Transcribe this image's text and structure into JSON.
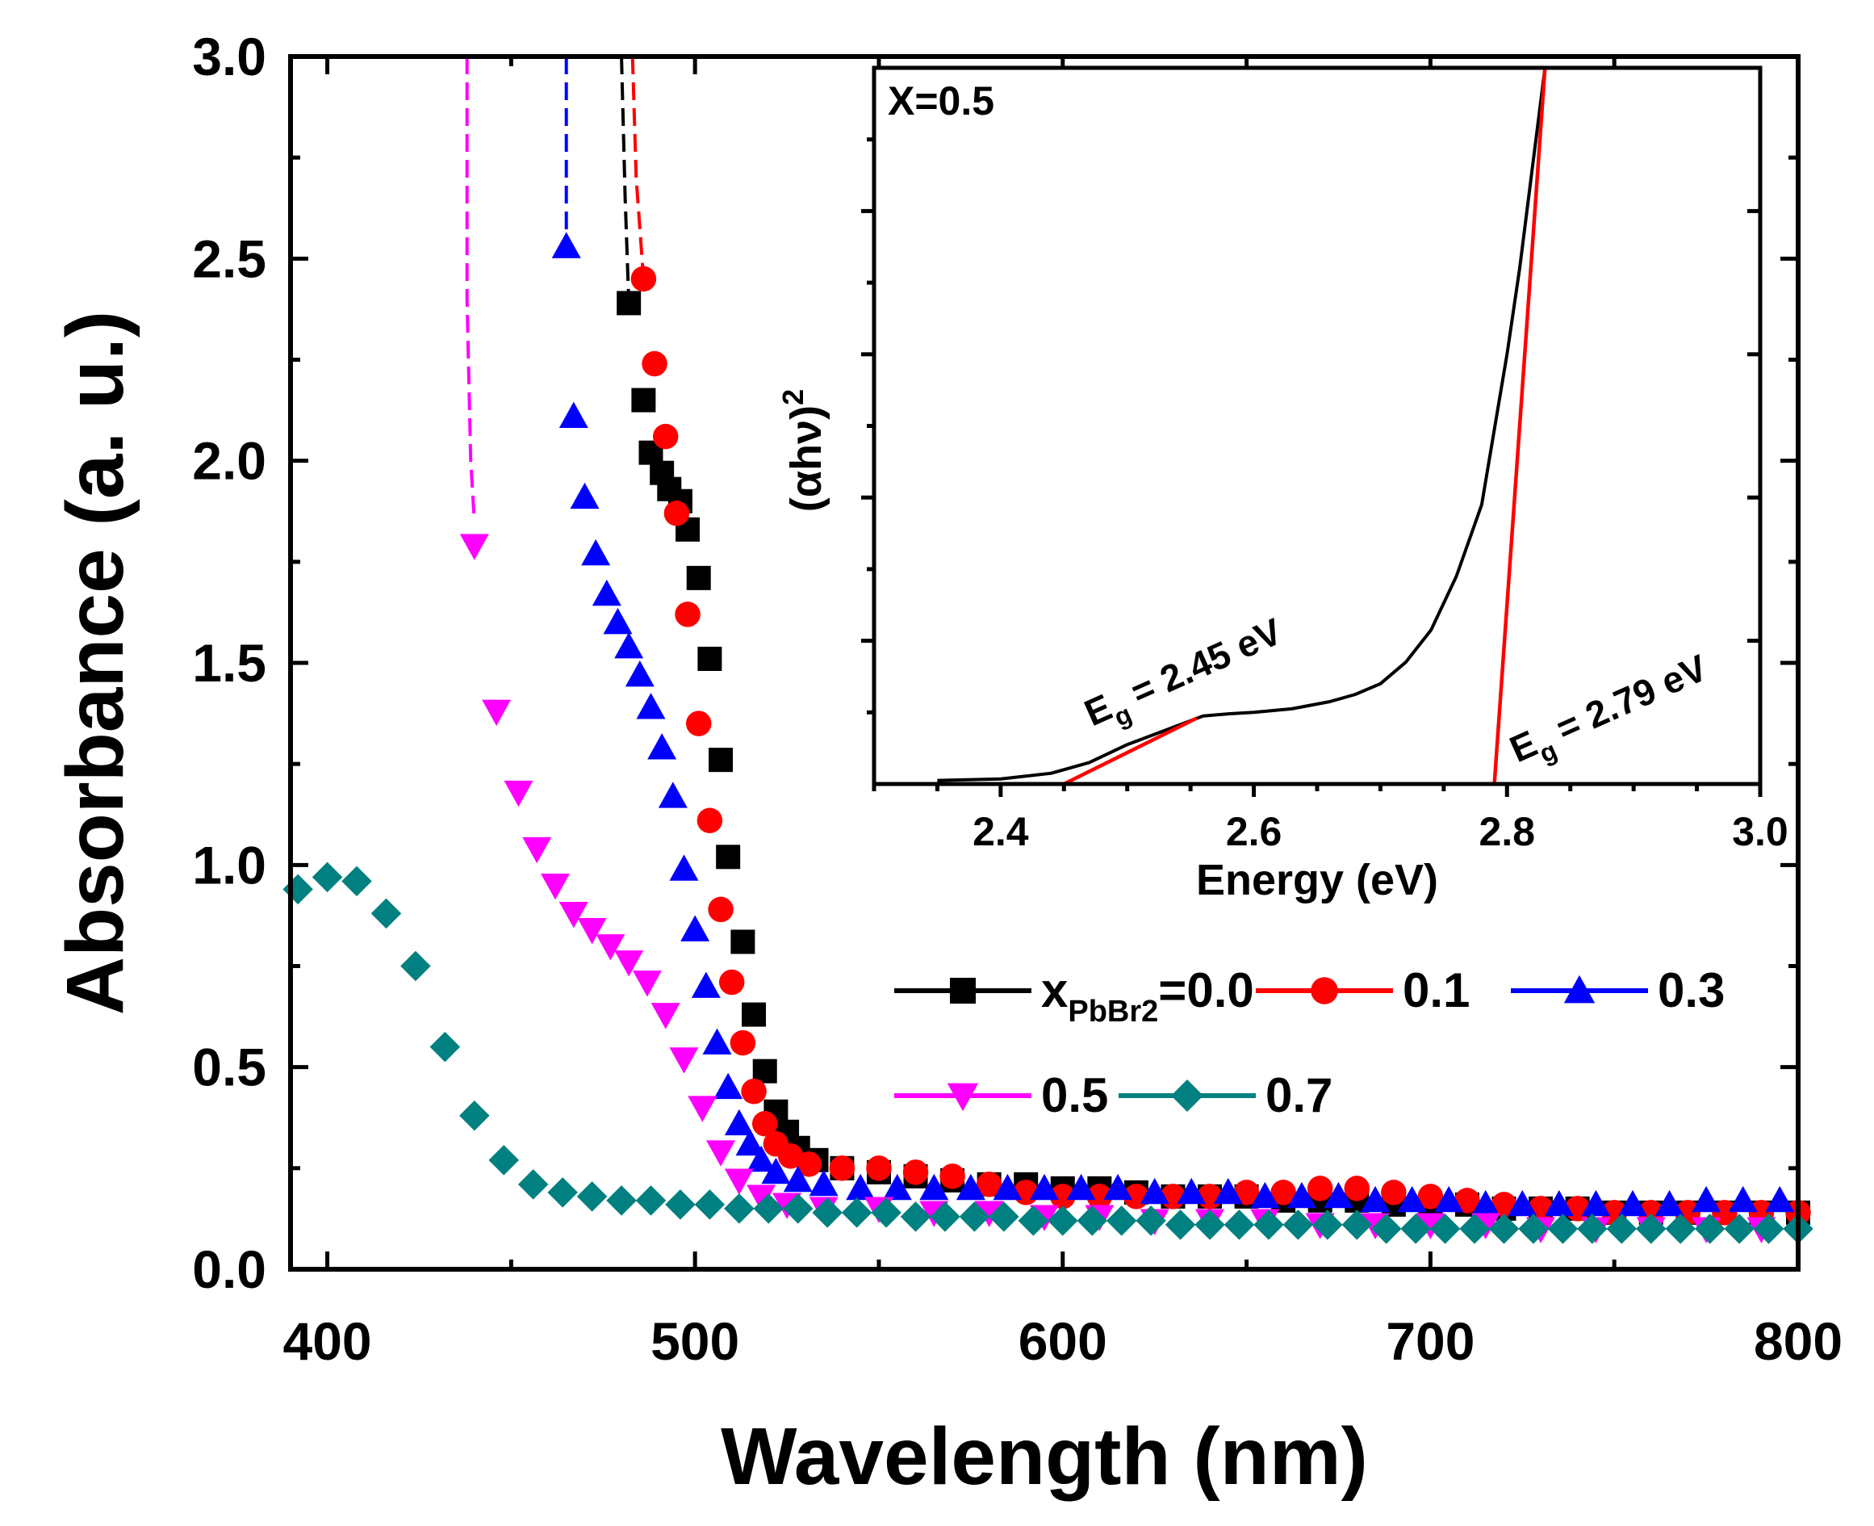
{
  "chart_data": [
    {
      "type": "scatter",
      "xlabel": "Wavelength (nm)",
      "ylabel": "Absorbance (a. u.)",
      "xlim": [
        390,
        800
      ],
      "ylim": [
        0,
        3.0
      ],
      "xticks": [
        400,
        500,
        600,
        700,
        800
      ],
      "xtick_labels": [
        "400",
        "500",
        "600",
        "700",
        "800"
      ],
      "yticks": [
        0,
        0.5,
        1.0,
        1.5,
        2.0,
        2.5,
        3.0
      ],
      "ytick_labels": [
        "0.0",
        "0.5",
        "1.0",
        "1.5",
        "2.0",
        "2.5",
        "3.0"
      ],
      "legend": {
        "placement": "right-middle",
        "prefix_main": "x",
        "prefix_sub": "PbBr2",
        "first_suffix": "=0.0"
      },
      "series": [
        {
          "name": "0.0",
          "label": "=0.0",
          "color": "#000000",
          "marker": "square",
          "points": [
            [
              482,
              2.39
            ],
            [
              486,
              2.15
            ],
            [
              488,
              2.02
            ],
            [
              491,
              1.97
            ],
            [
              493,
              1.93
            ],
            [
              496,
              1.9
            ],
            [
              498,
              1.83
            ],
            [
              501,
              1.71
            ],
            [
              504,
              1.51
            ],
            [
              507,
              1.26
            ],
            [
              509,
              1.02
            ],
            [
              513,
              0.81
            ],
            [
              516,
              0.63
            ],
            [
              519,
              0.49
            ],
            [
              522,
              0.39
            ],
            [
              525,
              0.34
            ],
            [
              528,
              0.3
            ],
            [
              533,
              0.27
            ],
            [
              540,
              0.25
            ],
            [
              550,
              0.24
            ],
            [
              560,
              0.23
            ],
            [
              570,
              0.22
            ],
            [
              580,
              0.21
            ],
            [
              590,
              0.21
            ],
            [
              600,
              0.2
            ],
            [
              610,
              0.2
            ],
            [
              620,
              0.19
            ],
            [
              630,
              0.18
            ],
            [
              640,
              0.18
            ],
            [
              650,
              0.18
            ],
            [
              660,
              0.17
            ],
            [
              670,
              0.17
            ],
            [
              680,
              0.17
            ],
            [
              690,
              0.16
            ],
            [
              700,
              0.16
            ],
            [
              710,
              0.16
            ],
            [
              720,
              0.15
            ],
            [
              730,
              0.15
            ],
            [
              740,
              0.15
            ],
            [
              750,
              0.14
            ],
            [
              760,
              0.14
            ],
            [
              770,
              0.14
            ],
            [
              780,
              0.14
            ],
            [
              790,
              0.14
            ],
            [
              800,
              0.14
            ]
          ],
          "curve": [
            [
              480,
              3.0
            ],
            [
              481,
              2.65
            ],
            [
              482,
              2.39
            ]
          ]
        },
        {
          "name": "0.1",
          "label": "0.1",
          "color": "#ff0000",
          "marker": "circle",
          "points": [
            [
              486,
              2.45
            ],
            [
              489,
              2.24
            ],
            [
              492,
              2.06
            ],
            [
              495,
              1.87
            ],
            [
              498,
              1.62
            ],
            [
              501,
              1.35
            ],
            [
              504,
              1.11
            ],
            [
              507,
              0.89
            ],
            [
              510,
              0.71
            ],
            [
              513,
              0.56
            ],
            [
              516,
              0.44
            ],
            [
              519,
              0.36
            ],
            [
              522,
              0.31
            ],
            [
              526,
              0.28
            ],
            [
              531,
              0.26
            ],
            [
              540,
              0.25
            ],
            [
              550,
              0.25
            ],
            [
              560,
              0.24
            ],
            [
              570,
              0.23
            ],
            [
              580,
              0.21
            ],
            [
              590,
              0.19
            ],
            [
              600,
              0.18
            ],
            [
              610,
              0.18
            ],
            [
              620,
              0.18
            ],
            [
              630,
              0.18
            ],
            [
              640,
              0.18
            ],
            [
              650,
              0.19
            ],
            [
              660,
              0.19
            ],
            [
              670,
              0.2
            ],
            [
              680,
              0.2
            ],
            [
              690,
              0.19
            ],
            [
              700,
              0.18
            ],
            [
              710,
              0.17
            ],
            [
              720,
              0.16
            ],
            [
              730,
              0.15
            ],
            [
              740,
              0.15
            ],
            [
              750,
              0.14
            ],
            [
              760,
              0.14
            ],
            [
              770,
              0.14
            ],
            [
              780,
              0.14
            ],
            [
              790,
              0.14
            ],
            [
              800,
              0.14
            ]
          ],
          "curve": [
            [
              483,
              3.0
            ],
            [
              484,
              2.7
            ],
            [
              486,
              2.45
            ]
          ]
        },
        {
          "name": "0.3",
          "label": "0.3",
          "color": "#0000ff",
          "marker": "triangle-up",
          "points": [
            [
              465,
              2.53
            ],
            [
              467,
              2.11
            ],
            [
              470,
              1.91
            ],
            [
              473,
              1.77
            ],
            [
              476,
              1.67
            ],
            [
              479,
              1.6
            ],
            [
              482,
              1.54
            ],
            [
              485,
              1.47
            ],
            [
              488,
              1.39
            ],
            [
              491,
              1.29
            ],
            [
              494,
              1.17
            ],
            [
              497,
              0.99
            ],
            [
              500,
              0.84
            ],
            [
              503,
              0.7
            ],
            [
              506,
              0.56
            ],
            [
              509,
              0.45
            ],
            [
              512,
              0.36
            ],
            [
              515,
              0.31
            ],
            [
              518,
              0.27
            ],
            [
              522,
              0.24
            ],
            [
              528,
              0.22
            ],
            [
              535,
              0.21
            ],
            [
              545,
              0.2
            ],
            [
              555,
              0.2
            ],
            [
              565,
              0.2
            ],
            [
              575,
              0.2
            ],
            [
              585,
              0.2
            ],
            [
              595,
              0.2
            ],
            [
              605,
              0.2
            ],
            [
              615,
              0.2
            ],
            [
              625,
              0.19
            ],
            [
              635,
              0.19
            ],
            [
              645,
              0.19
            ],
            [
              655,
              0.18
            ],
            [
              665,
              0.18
            ],
            [
              675,
              0.18
            ],
            [
              685,
              0.17
            ],
            [
              695,
              0.17
            ],
            [
              705,
              0.17
            ],
            [
              715,
              0.16
            ],
            [
              725,
              0.16
            ],
            [
              735,
              0.16
            ],
            [
              745,
              0.16
            ],
            [
              755,
              0.16
            ],
            [
              765,
              0.16
            ],
            [
              775,
              0.17
            ],
            [
              785,
              0.17
            ],
            [
              795,
              0.17
            ]
          ],
          "curve": [
            [
              465,
              3.0
            ],
            [
              465,
              2.75
            ],
            [
              465,
              2.53
            ]
          ]
        },
        {
          "name": "0.5",
          "label": "0.5",
          "color": "#ff00ff",
          "marker": "triangle-down",
          "points": [
            [
              440,
              1.79
            ],
            [
              446,
              1.38
            ],
            [
              452,
              1.18
            ],
            [
              457,
              1.04
            ],
            [
              462,
              0.95
            ],
            [
              467,
              0.88
            ],
            [
              472,
              0.84
            ],
            [
              477,
              0.8
            ],
            [
              482,
              0.76
            ],
            [
              487,
              0.71
            ],
            [
              492,
              0.63
            ],
            [
              497,
              0.52
            ],
            [
              502,
              0.4
            ],
            [
              507,
              0.29
            ],
            [
              512,
              0.22
            ],
            [
              518,
              0.18
            ],
            [
              525,
              0.16
            ],
            [
              535,
              0.15
            ],
            [
              550,
              0.15
            ],
            [
              565,
              0.14
            ],
            [
              580,
              0.14
            ],
            [
              595,
              0.13
            ],
            [
              610,
              0.13
            ],
            [
              625,
              0.12
            ],
            [
              640,
              0.12
            ],
            [
              655,
              0.12
            ],
            [
              670,
              0.11
            ],
            [
              685,
              0.11
            ],
            [
              700,
              0.11
            ],
            [
              715,
              0.11
            ],
            [
              730,
              0.1
            ],
            [
              745,
              0.1
            ],
            [
              760,
              0.1
            ],
            [
              775,
              0.1
            ],
            [
              790,
              0.1
            ]
          ],
          "curve": [
            [
              438,
              3.0
            ],
            [
              438,
              2.4
            ],
            [
              439,
              2.0
            ],
            [
              440,
              1.85
            ]
          ]
        },
        {
          "name": "0.7",
          "label": "0.7",
          "color": "#008080",
          "marker": "diamond",
          "points": [
            [
              392,
              0.94
            ],
            [
              400,
              0.97
            ],
            [
              408,
              0.96
            ],
            [
              416,
              0.88
            ],
            [
              424,
              0.75
            ],
            [
              432,
              0.55
            ],
            [
              440,
              0.38
            ],
            [
              448,
              0.27
            ],
            [
              456,
              0.21
            ],
            [
              464,
              0.19
            ],
            [
              472,
              0.18
            ],
            [
              480,
              0.17
            ],
            [
              488,
              0.17
            ],
            [
              496,
              0.16
            ],
            [
              504,
              0.16
            ],
            [
              512,
              0.15
            ],
            [
              520,
              0.15
            ],
            [
              528,
              0.15
            ],
            [
              536,
              0.14
            ],
            [
              544,
              0.14
            ],
            [
              552,
              0.14
            ],
            [
              560,
              0.13
            ],
            [
              568,
              0.13
            ],
            [
              576,
              0.13
            ],
            [
              584,
              0.13
            ],
            [
              592,
              0.12
            ],
            [
              600,
              0.12
            ],
            [
              608,
              0.12
            ],
            [
              616,
              0.12
            ],
            [
              624,
              0.12
            ],
            [
              632,
              0.11
            ],
            [
              640,
              0.11
            ],
            [
              648,
              0.11
            ],
            [
              656,
              0.11
            ],
            [
              664,
              0.11
            ],
            [
              672,
              0.11
            ],
            [
              680,
              0.11
            ],
            [
              688,
              0.1
            ],
            [
              696,
              0.1
            ],
            [
              704,
              0.1
            ],
            [
              712,
              0.1
            ],
            [
              720,
              0.1
            ],
            [
              728,
              0.1
            ],
            [
              736,
              0.1
            ],
            [
              744,
              0.1
            ],
            [
              752,
              0.1
            ],
            [
              760,
              0.1
            ],
            [
              768,
              0.1
            ],
            [
              776,
              0.1
            ],
            [
              784,
              0.1
            ],
            [
              792,
              0.1
            ],
            [
              800,
              0.1
            ]
          ],
          "curve": []
        }
      ]
    },
    {
      "type": "line",
      "title": "X=0.5",
      "xlabel": "Energy (eV)",
      "ylabel_main": "(αhν)",
      "ylabel_sup": "2",
      "xlim": [
        2.3,
        3.0
      ],
      "ylim": [
        0,
        1.0
      ],
      "xticks": [
        2.4,
        2.6,
        2.8,
        3.0
      ],
      "xtick_labels": [
        "2.4",
        "2.6",
        "2.8",
        "3.0"
      ],
      "y_minor_ticks": [
        0.2,
        0.4,
        0.6,
        0.8
      ],
      "series": [
        {
          "name": "(αhν)^2",
          "color": "#000000",
          "x": [
            2.35,
            2.4,
            2.44,
            2.47,
            2.5,
            2.53,
            2.56,
            2.58,
            2.6,
            2.63,
            2.66,
            2.68,
            2.7,
            2.72,
            2.74,
            2.76,
            2.78,
            2.8,
            2.81,
            2.82,
            2.83
          ],
          "y": [
            0.005,
            0.007,
            0.015,
            0.03,
            0.055,
            0.075,
            0.095,
            0.098,
            0.1,
            0.105,
            0.115,
            0.125,
            0.14,
            0.17,
            0.215,
            0.29,
            0.39,
            0.6,
            0.72,
            0.86,
            1.0
          ]
        },
        {
          "name": "fit-1",
          "color": "#ff0000",
          "x": [
            2.45,
            2.555
          ],
          "y": [
            0.0,
            0.092
          ]
        },
        {
          "name": "fit-2",
          "color": "#ff0000",
          "x": [
            2.79,
            2.83
          ],
          "y": [
            0.0,
            1.0
          ]
        }
      ],
      "annotations": [
        {
          "name": "eg-low",
          "main": "E",
          "sub": "g",
          "tail": " = 2.45 eV"
        },
        {
          "name": "eg-high",
          "main": "E",
          "sub": "g",
          "tail": " = 2.79 eV"
        }
      ]
    }
  ]
}
